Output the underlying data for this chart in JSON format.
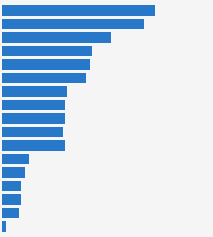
{
  "values": [
    73,
    68,
    52,
    43,
    42,
    40,
    31,
    30,
    30,
    29,
    30,
    13,
    11,
    9,
    9,
    8,
    2
  ],
  "bar_color": "#2778c8",
  "background_color": "#f5f5f5",
  "plot_background": "#f5f5f5",
  "bar_height": 0.78,
  "xlim_max": 100
}
